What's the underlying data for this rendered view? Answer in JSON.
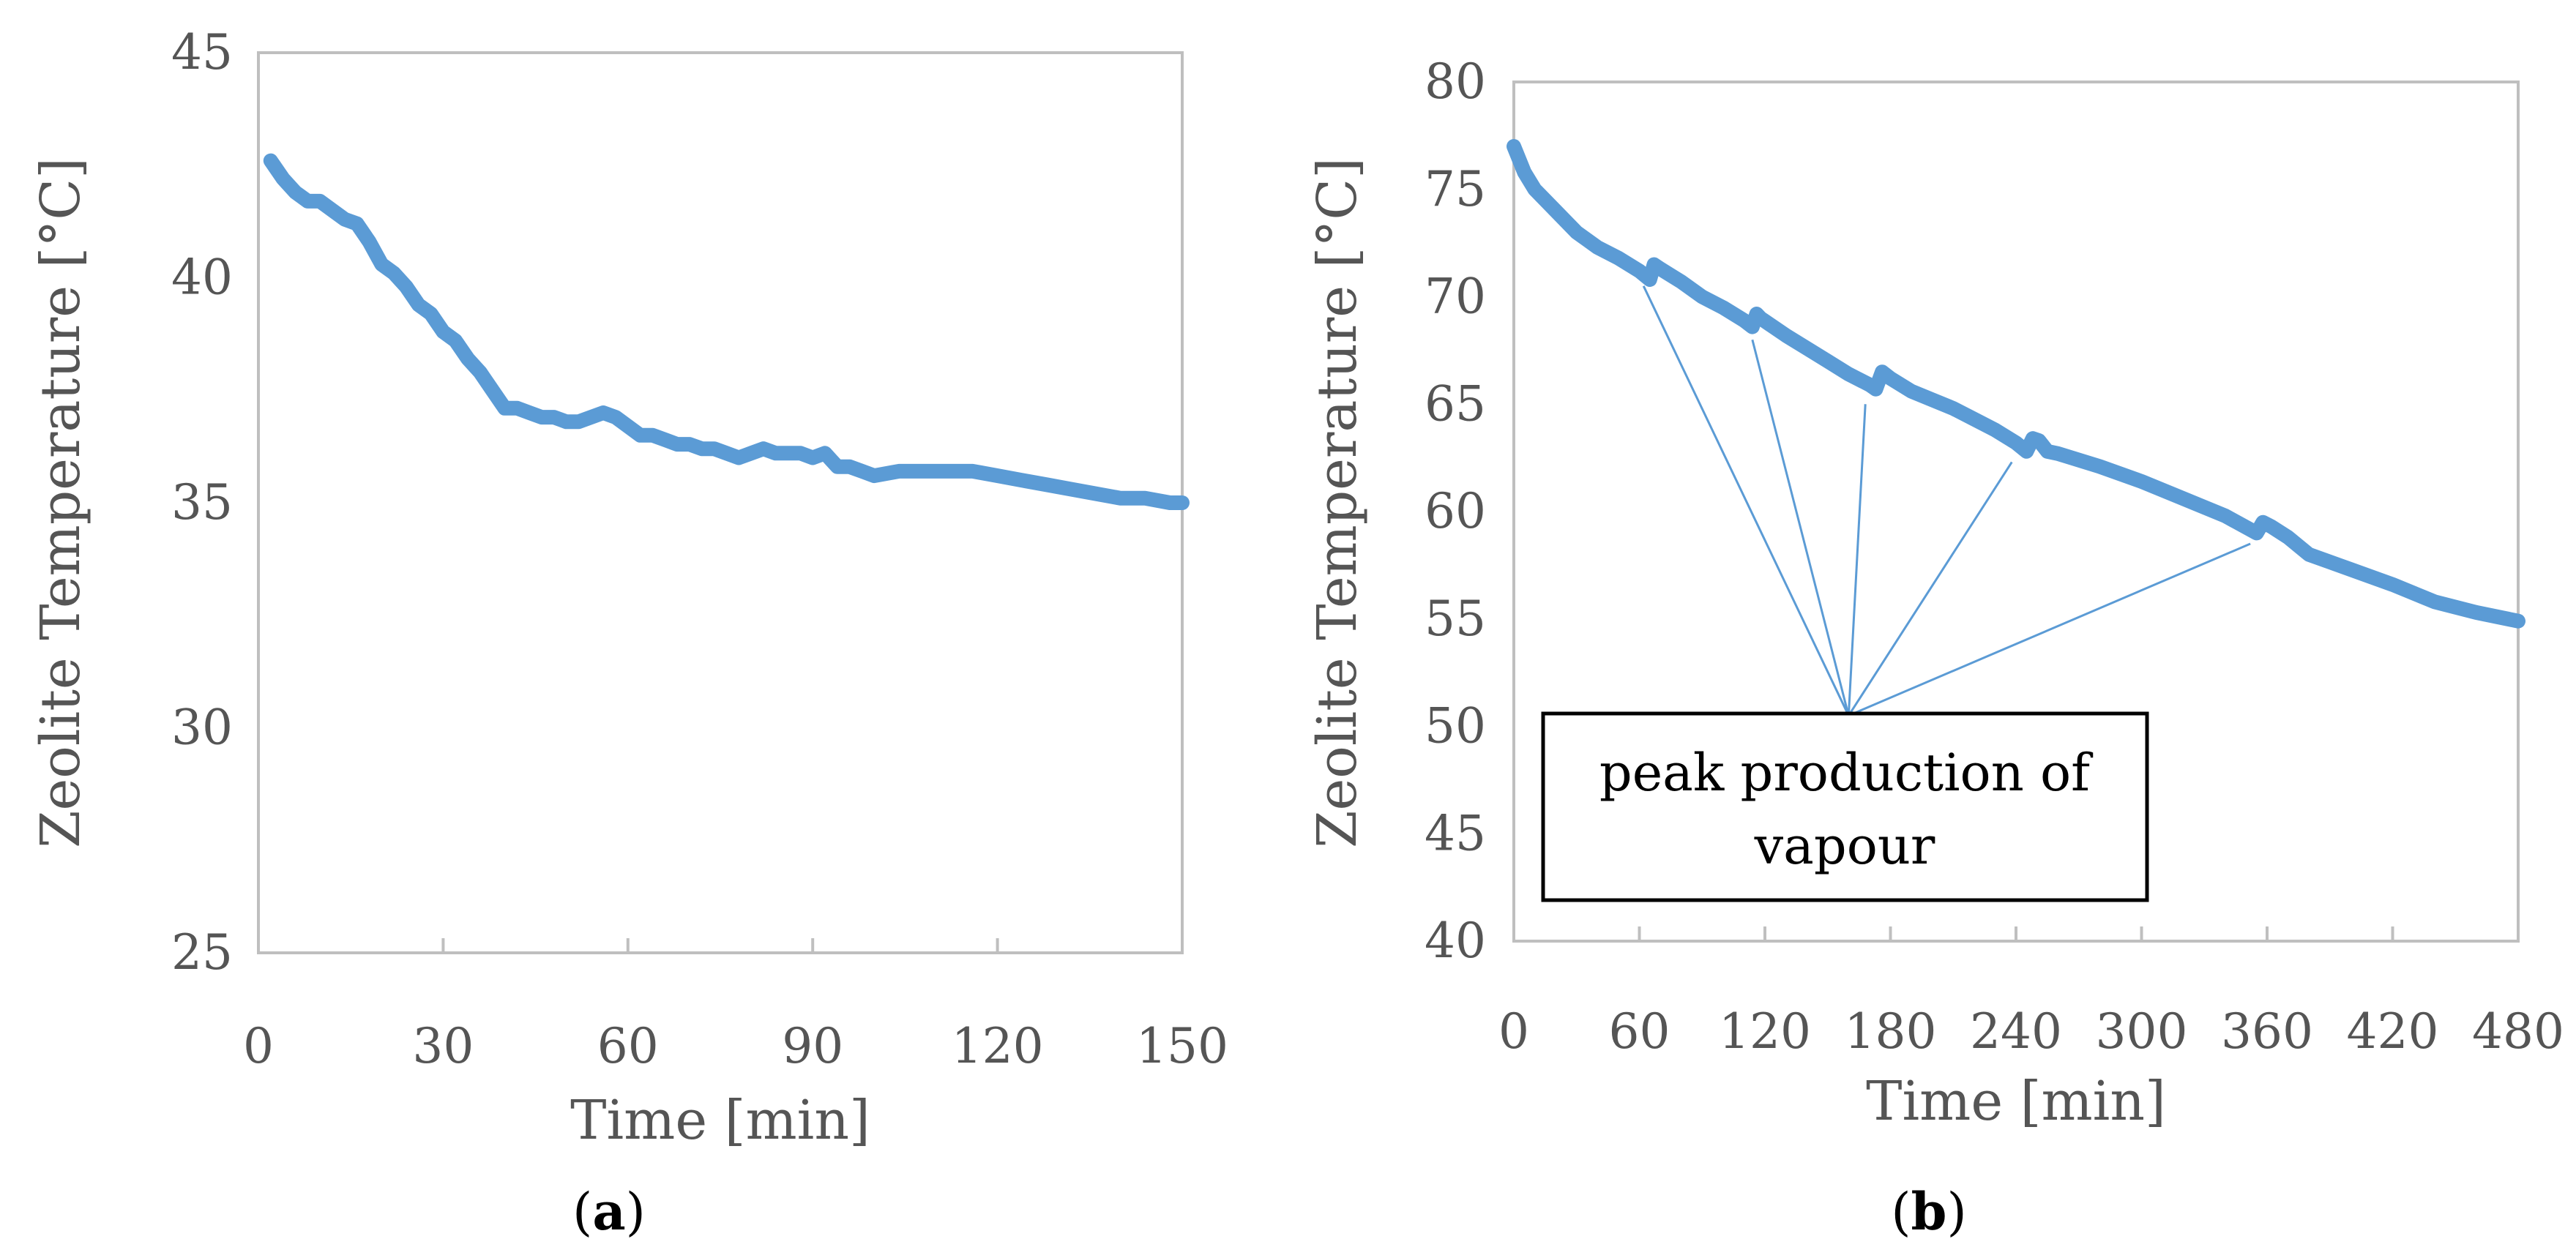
{
  "chart_data": [
    {
      "id": "a",
      "type": "line",
      "xlabel": "Time [min]",
      "ylabel": "Zeolite Temperature [°C]",
      "xlim": [
        0,
        150
      ],
      "ylim": [
        25,
        45
      ],
      "xticks": [
        0,
        30,
        60,
        90,
        120,
        150
      ],
      "yticks": [
        25,
        30,
        35,
        40,
        45
      ],
      "xtick_labels": [
        "0",
        "30",
        "60",
        "90",
        "120",
        "150"
      ],
      "ytick_labels": [
        "25",
        "30",
        "35",
        "40",
        "45"
      ],
      "series": [
        {
          "name": "Zeolite Temperature",
          "color": "#5b9bd5",
          "x": [
            2,
            4,
            6,
            8,
            10,
            12,
            14,
            16,
            18,
            20,
            22,
            24,
            26,
            28,
            30,
            32,
            34,
            36,
            38,
            40,
            42,
            44,
            46,
            48,
            50,
            52,
            54,
            56,
            58,
            60,
            62,
            64,
            66,
            68,
            70,
            72,
            74,
            76,
            78,
            80,
            82,
            84,
            86,
            88,
            90,
            92,
            94,
            96,
            98,
            100,
            104,
            108,
            112,
            116,
            120,
            124,
            128,
            132,
            136,
            140,
            144,
            148,
            150
          ],
          "y": [
            42.6,
            42.2,
            41.9,
            41.7,
            41.7,
            41.5,
            41.3,
            41.2,
            40.8,
            40.3,
            40.1,
            39.8,
            39.4,
            39.2,
            38.8,
            38.6,
            38.2,
            37.9,
            37.5,
            37.1,
            37.1,
            37.0,
            36.9,
            36.9,
            36.8,
            36.8,
            36.9,
            37.0,
            36.9,
            36.7,
            36.5,
            36.5,
            36.4,
            36.3,
            36.3,
            36.2,
            36.2,
            36.1,
            36.0,
            36.1,
            36.2,
            36.1,
            36.1,
            36.1,
            36.0,
            36.1,
            35.8,
            35.8,
            35.7,
            35.6,
            35.7,
            35.7,
            35.7,
            35.7,
            35.6,
            35.5,
            35.4,
            35.3,
            35.2,
            35.1,
            35.1,
            35.0,
            35.0
          ]
        }
      ],
      "caption": {
        "open": "(",
        "letter": "a",
        "close": ")"
      }
    },
    {
      "id": "b",
      "type": "line",
      "xlabel": "Time [min]",
      "ylabel": "Zeolite Temperature [°C]",
      "xlim": [
        0,
        480
      ],
      "ylim": [
        40,
        80
      ],
      "xticks": [
        0,
        60,
        120,
        180,
        240,
        300,
        360,
        420,
        480
      ],
      "yticks": [
        40,
        45,
        50,
        55,
        60,
        65,
        70,
        75,
        80
      ],
      "xtick_labels": [
        "0",
        "60",
        "120",
        "180",
        "240",
        "300",
        "360",
        "420",
        "480"
      ],
      "ytick_labels": [
        "40",
        "45",
        "50",
        "55",
        "60",
        "65",
        "70",
        "75",
        "80"
      ],
      "series": [
        {
          "name": "Zeolite Temperature",
          "color": "#5b9bd5",
          "x": [
            0,
            5,
            10,
            20,
            30,
            40,
            50,
            60,
            65,
            67,
            70,
            80,
            90,
            100,
            110,
            114,
            116,
            118,
            130,
            140,
            150,
            160,
            170,
            173,
            176,
            180,
            190,
            200,
            210,
            220,
            230,
            240,
            245,
            248,
            251,
            255,
            260,
            280,
            300,
            320,
            340,
            355,
            358,
            362,
            370,
            380,
            400,
            420,
            440,
            460,
            480
          ],
          "y": [
            77.0,
            75.8,
            75.0,
            74.0,
            73.0,
            72.3,
            71.8,
            71.2,
            70.8,
            71.5,
            71.3,
            70.7,
            70.0,
            69.5,
            68.9,
            68.6,
            69.2,
            69.0,
            68.2,
            67.6,
            67.0,
            66.4,
            65.9,
            65.7,
            66.5,
            66.2,
            65.6,
            65.2,
            64.8,
            64.3,
            63.8,
            63.2,
            62.8,
            63.4,
            63.3,
            62.8,
            62.7,
            62.1,
            61.4,
            60.6,
            59.8,
            59.0,
            59.5,
            59.3,
            58.8,
            58.0,
            57.3,
            56.6,
            55.8,
            55.3,
            54.9
          ]
        }
      ],
      "annotation": {
        "text_line1": "peak production of",
        "text_line2": "vapour",
        "anchor": [
          160,
          50.5
        ],
        "targets": [
          [
            62,
            70.5
          ],
          [
            114,
            68.0
          ],
          [
            168,
            65.0
          ],
          [
            238,
            62.3
          ],
          [
            352,
            58.5
          ]
        ],
        "line_color": "#5b9bd5"
      },
      "caption": {
        "open": "(",
        "letter": "b",
        "close": ")"
      }
    }
  ]
}
